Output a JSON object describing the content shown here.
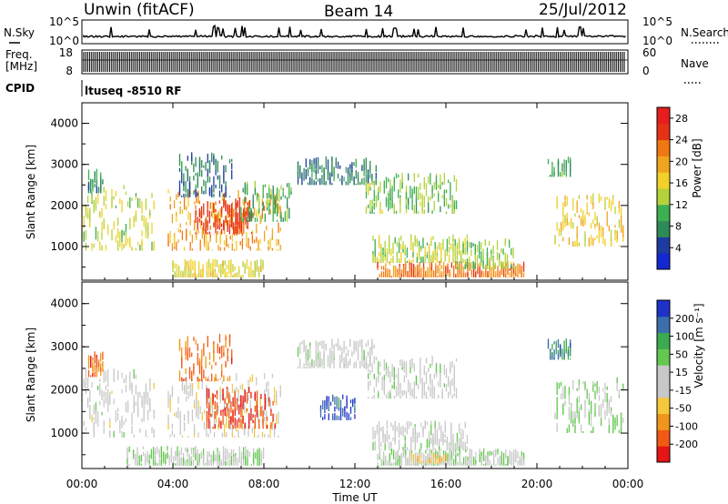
{
  "header": {
    "station": "Unwin (fitACF)",
    "beam": "Beam 14",
    "date": "25/Jul/2012"
  },
  "top_panels": {
    "nsky_label": "N.Sky",
    "nsky_ticks": [
      "10^5",
      "10^0"
    ],
    "nsearch_label": "N.Search",
    "nsearch_ticks": [
      "10^5",
      "10^0"
    ],
    "freq_label_1": "Freq.",
    "freq_label_2": "[MHz]",
    "freq_ticks": [
      "18",
      "8"
    ],
    "nave_label": "Nave",
    "nave_ticks": [
      "60",
      "0"
    ],
    "cpid_label": "CPID",
    "cpid_text": "ltuseq -8510 RF"
  },
  "colors": {
    "nsky_line": "#000000",
    "nsearch_line": "#000000",
    "power_scale": [
      "#1428d2",
      "#1e3ca0",
      "#2e8b57",
      "#3caf50",
      "#b4d23c",
      "#f0d228",
      "#f0a51e",
      "#f07814",
      "#e63214",
      "#e61e1e"
    ],
    "velocity_scale": [
      "#e61414",
      "#f05a14",
      "#f0961e",
      "#f5c83c",
      "#c8c8c8",
      "#c8c8c8",
      "#64c850",
      "#3caa50",
      "#3c6eaa",
      "#1e32c8"
    ]
  },
  "chart_data": [
    {
      "type": "heatmap",
      "title": "",
      "quantity": "Power",
      "xlabel": "",
      "ylabel": "Slant Range [km]",
      "x_ticks": [
        "00:00",
        "04:00",
        "08:00",
        "12:00",
        "16:00",
        "20:00",
        "00:00"
      ],
      "y_ticks": [
        "1000",
        "2000",
        "3000",
        "4000"
      ],
      "xlim_hours": [
        0,
        24
      ],
      "ylim_km": [
        180,
        4500
      ],
      "colorbar": {
        "label": "Power [dB]",
        "ticks": [
          "4",
          "8",
          "12",
          "16",
          "20",
          "24",
          "28"
        ],
        "range": [
          0,
          30
        ]
      },
      "echo_regions": [
        {
          "t": [
            0.0,
            3.2
          ],
          "r": [
            900,
            2500
          ],
          "value": 14
        },
        {
          "t": [
            0.3,
            1.0
          ],
          "r": [
            2300,
            2900
          ],
          "value": 8
        },
        {
          "t": [
            3.8,
            8.8
          ],
          "r": [
            900,
            2400
          ],
          "value": 20
        },
        {
          "t": [
            4.3,
            6.6
          ],
          "r": [
            2200,
            3300
          ],
          "value": 6
        },
        {
          "t": [
            5.0,
            7.5
          ],
          "r": [
            1300,
            2200
          ],
          "value": 26
        },
        {
          "t": [
            7.0,
            9.2
          ],
          "r": [
            1600,
            2600
          ],
          "value": 10
        },
        {
          "t": [
            9.5,
            13.0
          ],
          "r": [
            2500,
            3200
          ],
          "value": 7
        },
        {
          "t": [
            12.5,
            16.5
          ],
          "r": [
            1800,
            2800
          ],
          "value": 12
        },
        {
          "t": [
            12.8,
            17.0
          ],
          "r": [
            600,
            1300
          ],
          "value": 14
        },
        {
          "t": [
            13.0,
            19.5
          ],
          "r": [
            250,
            650
          ],
          "value": 22
        },
        {
          "t": [
            16.5,
            19.0
          ],
          "r": [
            450,
            1200
          ],
          "value": 12
        },
        {
          "t": [
            20.5,
            21.5
          ],
          "r": [
            2700,
            3200
          ],
          "value": 10
        },
        {
          "t": [
            20.8,
            23.8
          ],
          "r": [
            1000,
            2300
          ],
          "value": 17
        },
        {
          "t": [
            4.0,
            8.0
          ],
          "r": [
            250,
            700
          ],
          "value": 16
        }
      ]
    },
    {
      "type": "heatmap",
      "title": "",
      "quantity": "Velocity",
      "xlabel": "Time UT",
      "ylabel": "Slant Range [km]",
      "x_ticks": [
        "00:00",
        "04:00",
        "08:00",
        "12:00",
        "16:00",
        "20:00",
        "00:00"
      ],
      "y_ticks": [
        "1000",
        "2000",
        "3000",
        "4000"
      ],
      "xlim_hours": [
        0,
        24
      ],
      "ylim_km": [
        180,
        4500
      ],
      "colorbar": {
        "label": "Velocity [m s⁻¹]",
        "ticks": [
          "200",
          "100",
          "50",
          "15",
          "-15",
          "-50",
          "-100",
          "-200"
        ],
        "range": [
          -250,
          250
        ]
      },
      "echo_regions": [
        {
          "t": [
            0.0,
            3.2
          ],
          "r": [
            900,
            2500
          ],
          "value": 0
        },
        {
          "t": [
            0.3,
            1.0
          ],
          "r": [
            2300,
            2900
          ],
          "value": -150
        },
        {
          "t": [
            3.8,
            8.8
          ],
          "r": [
            900,
            2400
          ],
          "value": -20
        },
        {
          "t": [
            4.3,
            6.6
          ],
          "r": [
            2200,
            3300
          ],
          "value": -150
        },
        {
          "t": [
            5.5,
            8.5
          ],
          "r": [
            1100,
            2100
          ],
          "value": -200
        },
        {
          "t": [
            9.5,
            13.0
          ],
          "r": [
            2500,
            3200
          ],
          "value": 5
        },
        {
          "t": [
            10.5,
            12.0
          ],
          "r": [
            1300,
            1900
          ],
          "value": 200
        },
        {
          "t": [
            12.5,
            16.5
          ],
          "r": [
            1800,
            2800
          ],
          "value": 5
        },
        {
          "t": [
            12.8,
            17.0
          ],
          "r": [
            600,
            1300
          ],
          "value": 10
        },
        {
          "t": [
            13.0,
            19.5
          ],
          "r": [
            250,
            650
          ],
          "value": 30
        },
        {
          "t": [
            14.5,
            16.0
          ],
          "r": [
            300,
            550
          ],
          "value": -60
        },
        {
          "t": [
            20.5,
            21.5
          ],
          "r": [
            2700,
            3200
          ],
          "value": 150
        },
        {
          "t": [
            20.8,
            23.8
          ],
          "r": [
            1000,
            2300
          ],
          "value": 40
        },
        {
          "t": [
            2.0,
            8.0
          ],
          "r": [
            250,
            700
          ],
          "value": 40
        }
      ]
    }
  ]
}
